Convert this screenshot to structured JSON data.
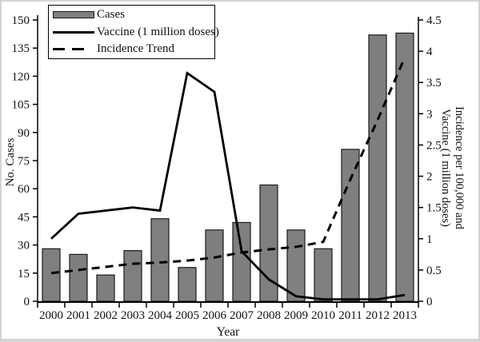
{
  "figure": {
    "x_axis_label": "Year",
    "left_axis_label": "No. Cases",
    "right_axis_label_line1": "Incidence  per  100,000  and",
    "right_axis_label_line2": "Vaccine  (1 million  doses)",
    "legend": {
      "cases": "Cases",
      "vaccine": "Vaccine (1 million doses)",
      "incidence": "Incidence Trend"
    },
    "colors": {
      "bar_fill": "#7f7f7f",
      "bar_border": "#1a1a1a",
      "line": "#000000",
      "text": "#111111",
      "frame": "#d4d4d4"
    }
  },
  "chart_data": {
    "type": "bar",
    "title": "",
    "xlabel": "Year",
    "grid": false,
    "legend_position": "top-left",
    "categories": [
      "2000",
      "2001",
      "2002",
      "2003",
      "2004",
      "2005",
      "2006",
      "2007",
      "2008",
      "2009",
      "2010",
      "2011",
      "2012",
      "2013"
    ],
    "left_axis": {
      "label": "No. Cases",
      "min": 0,
      "max": 150,
      "step": 15
    },
    "right_axis": {
      "label": "Incidence per 100,000 and Vaccine (1 million doses)",
      "min": 0,
      "max": 4.5,
      "step": 0.5
    },
    "series": [
      {
        "name": "Cases",
        "type": "bar",
        "axis": "left",
        "values": [
          28,
          25,
          14,
          27,
          44,
          18,
          38,
          42,
          62,
          38,
          28,
          81,
          142,
          143
        ]
      },
      {
        "name": "Vaccine (1 million doses)",
        "type": "line",
        "style": "solid",
        "axis": "right",
        "values": [
          1.0,
          1.4,
          1.45,
          1.5,
          1.45,
          3.65,
          3.35,
          0.8,
          0.35,
          0.08,
          0.03,
          0.03,
          0.03,
          0.1
        ]
      },
      {
        "name": "Incidence Trend",
        "type": "line",
        "style": "dashed",
        "axis": "right",
        "values": [
          0.45,
          0.5,
          0.55,
          0.6,
          0.62,
          0.65,
          0.7,
          0.78,
          0.83,
          0.87,
          0.95,
          1.95,
          2.9,
          3.9
        ]
      }
    ]
  }
}
